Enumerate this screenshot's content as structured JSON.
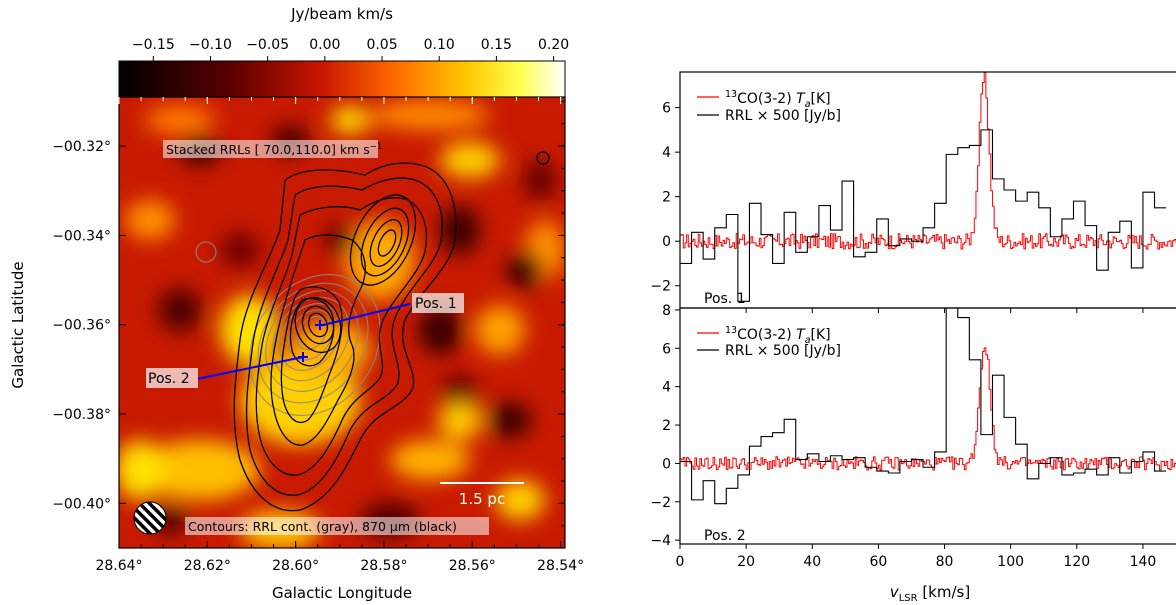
{
  "chart_data": [
    {
      "type": "heatmap",
      "colorbar": {
        "label": "Jy/beam km/s",
        "range": [
          -0.18,
          0.21
        ],
        "ticks": [
          "−0.15",
          "−0.10",
          "−0.05",
          "0.00",
          "0.05",
          "0.10",
          "0.15",
          "0.20"
        ],
        "tick_values": [
          -0.15,
          -0.1,
          -0.05,
          0.0,
          0.05,
          0.1,
          0.15,
          0.2
        ],
        "colormap": "afmhot"
      },
      "xlabel": "Galactic Longitude",
      "ylabel": "Galactic Latitude",
      "x_ticks": [
        "28.64°",
        "28.62°",
        "28.60°",
        "28.58°",
        "28.56°",
        "28.54°"
      ],
      "x_tick_values": [
        28.64,
        28.62,
        28.6,
        28.58,
        28.56,
        28.54
      ],
      "y_ticks": [
        "−00.32°",
        "−00.34°",
        "−00.36°",
        "−00.38°",
        "−00.40°"
      ],
      "y_tick_values": [
        -0.32,
        -0.34,
        -0.36,
        -0.38,
        -0.4
      ],
      "xlim": [
        28.64,
        28.539
      ],
      "ylim": [
        -0.41,
        -0.309
      ],
      "annotations": {
        "top_label": "Stacked RRLs [ 70.0,110.0] km s",
        "top_label_sup": "−1",
        "bottom_label": "Contours: RRL cont. (gray), 870 μm (black)",
        "scale_bar": "1.5 pc",
        "pos1": "Pos. 1",
        "pos2": "Pos. 2"
      },
      "positions": [
        {
          "name": "Pos. 1",
          "l": 28.5945,
          "b": -0.36
        },
        {
          "name": "Pos. 2",
          "l": 28.5965,
          "b": -0.3667
        }
      ],
      "line_colors": {
        "arrow": "#0000ff",
        "black_contour": "#000000",
        "gray_contour": "#8a8a8a"
      }
    },
    {
      "type": "line",
      "panel": "Pos. 1",
      "xlabel": "v",
      "xlabel_sub": "LSR",
      "xlabel_unit": " [km/s]",
      "xlim": [
        0,
        150
      ],
      "ylim": [
        -3,
        7.6
      ],
      "x_ticks": [
        0,
        20,
        40,
        60,
        80,
        100,
        120,
        140
      ],
      "y_ticks": [
        -2,
        0,
        2,
        4,
        6
      ],
      "legend": {
        "co_sup": "13",
        "co_text": "CO(3-2) ",
        "co_var": "T",
        "co_var_sub": "a",
        "co_unit": "[K]",
        "rrl_text": "RRL × 500 [Jy/b]"
      },
      "label": "Pos. 1",
      "rrl_step_x": [
        0,
        3.5,
        7,
        10.5,
        14,
        17.5,
        21,
        24.5,
        28,
        31.5,
        35,
        38.5,
        42,
        45.5,
        49,
        52.5,
        56,
        59.5,
        63,
        66.5,
        70,
        73.5,
        77,
        80.5,
        84,
        87.5,
        91,
        94.5,
        98,
        101.5,
        105,
        108.5,
        112,
        115.5,
        119,
        122.5,
        126,
        129.5,
        133,
        136.5,
        140,
        143.5,
        147
      ],
      "rrl_step_y": [
        -1.0,
        0.4,
        -0.8,
        0.6,
        1.2,
        -2.7,
        1.7,
        0.3,
        -1.0,
        1.3,
        -0.5,
        0.2,
        1.6,
        0.5,
        2.7,
        -0.7,
        -0.5,
        1.0,
        -0.2,
        0.1,
        0.0,
        0.6,
        1.7,
        3.9,
        4.2,
        4.3,
        5.0,
        2.8,
        2.3,
        1.8,
        2.2,
        1.5,
        0.2,
        1.0,
        1.8,
        0.7,
        -1.3,
        0.4,
        0.9,
        -1.2,
        2.2,
        1.5
      ],
      "co_peak": {
        "v": 91.8,
        "height": 7.3,
        "width": 1.5
      }
    },
    {
      "type": "line",
      "panel": "Pos. 2",
      "xlim": [
        0,
        150
      ],
      "ylim": [
        -4.2,
        8.1
      ],
      "x_ticks": [
        0,
        20,
        40,
        60,
        80,
        100,
        120,
        140
      ],
      "y_ticks": [
        -4,
        -2,
        0,
        2,
        4,
        6,
        8
      ],
      "legend": {
        "co_sup": "13",
        "co_text": "CO(3-2) ",
        "co_var": "T",
        "co_var_sub": "a",
        "co_unit": "[K]",
        "rrl_text": "RRL × 500 [Jy/b]"
      },
      "label": "Pos. 2",
      "rrl_step_x": [
        0,
        3.5,
        7,
        10.5,
        14,
        17.5,
        21,
        24.5,
        28,
        31.5,
        35,
        38.5,
        42,
        45.5,
        49,
        52.5,
        56,
        59.5,
        63,
        66.5,
        70,
        73.5,
        77,
        80.5,
        84,
        87.5,
        91,
        94.5,
        98,
        101.5,
        105,
        108.5,
        112,
        115.5,
        119,
        122.5,
        126,
        129.5,
        133,
        136.5,
        140,
        143.5,
        147
      ],
      "rrl_step_y": [
        0.1,
        -1.9,
        -0.9,
        -2.1,
        -1.3,
        -0.6,
        0.9,
        1.4,
        1.6,
        2.3,
        0.2,
        0.5,
        0.1,
        0.4,
        0.2,
        0.3,
        -0.2,
        -0.4,
        -0.5,
        0.1,
        0.2,
        -0.2,
        0.6,
        8.1,
        7.6,
        5.4,
        1.5,
        4.6,
        2.4,
        1.0,
        -0.8,
        0.0,
        0.3,
        -0.6,
        -0.5,
        -0.3,
        -0.6,
        0.3,
        -0.5,
        0.1,
        0.6,
        -0.4
      ],
      "co_peak": {
        "v": 92.0,
        "height": 6.2,
        "width": 1.6
      }
    }
  ]
}
